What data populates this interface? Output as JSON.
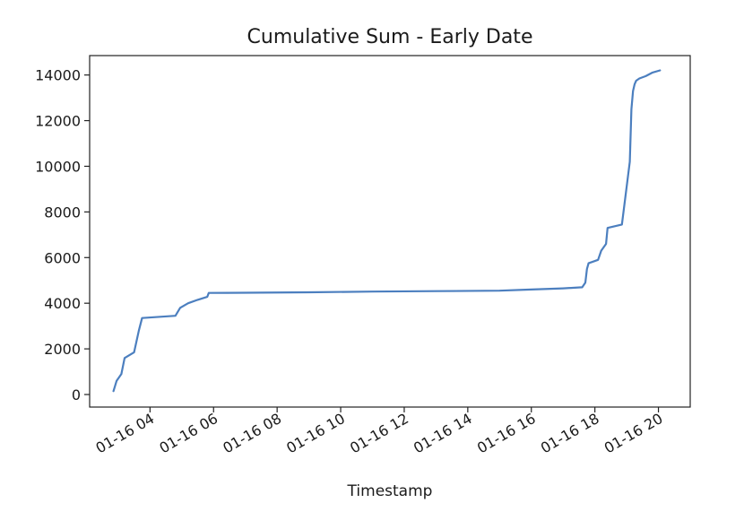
{
  "chart_data": {
    "type": "line",
    "title": "Cumulative Sum - Early Date",
    "xlabel": "Timestamp",
    "ylabel": "",
    "x_unit": "hours on 01-16",
    "xlim": [
      2.1,
      21.0
    ],
    "ylim": [
      -550,
      14850
    ],
    "grid": false,
    "legend": "none",
    "x_ticks": [
      {
        "value": 4,
        "label": "01-16 04"
      },
      {
        "value": 6,
        "label": "01-16 06"
      },
      {
        "value": 8,
        "label": "01-16 08"
      },
      {
        "value": 10,
        "label": "01-16 10"
      },
      {
        "value": 12,
        "label": "01-16 12"
      },
      {
        "value": 14,
        "label": "01-16 14"
      },
      {
        "value": 16,
        "label": "01-16 16"
      },
      {
        "value": 18,
        "label": "01-16 18"
      },
      {
        "value": 20,
        "label": "01-16 20"
      }
    ],
    "y_ticks": [
      {
        "value": 0,
        "label": "0"
      },
      {
        "value": 2000,
        "label": "2000"
      },
      {
        "value": 4000,
        "label": "4000"
      },
      {
        "value": 6000,
        "label": "6000"
      },
      {
        "value": 8000,
        "label": "8000"
      },
      {
        "value": 10000,
        "label": "10000"
      },
      {
        "value": 12000,
        "label": "12000"
      },
      {
        "value": 14000,
        "label": "14000"
      }
    ],
    "series": [
      {
        "color": "#4c7fbf",
        "x": [
          2.85,
          2.95,
          3.1,
          3.2,
          3.5,
          3.65,
          3.75,
          4.8,
          4.95,
          5.2,
          5.5,
          5.8,
          5.85,
          7.0,
          9.0,
          11.0,
          13.0,
          15.0,
          16.0,
          17.0,
          17.6,
          17.7,
          17.75,
          17.8,
          18.0,
          18.1,
          18.2,
          18.35,
          18.4,
          18.85,
          19.1,
          19.15,
          19.2,
          19.25,
          19.3,
          19.4,
          19.6,
          19.8,
          20.05
        ],
        "y": [
          150,
          600,
          900,
          1600,
          1850,
          2800,
          3350,
          3450,
          3800,
          4000,
          4150,
          4280,
          4450,
          4460,
          4480,
          4510,
          4530,
          4550,
          4600,
          4650,
          4700,
          4900,
          5500,
          5750,
          5850,
          5900,
          6300,
          6600,
          7300,
          7450,
          10200,
          12500,
          13300,
          13600,
          13750,
          13850,
          13950,
          14100,
          14200
        ]
      }
    ]
  }
}
